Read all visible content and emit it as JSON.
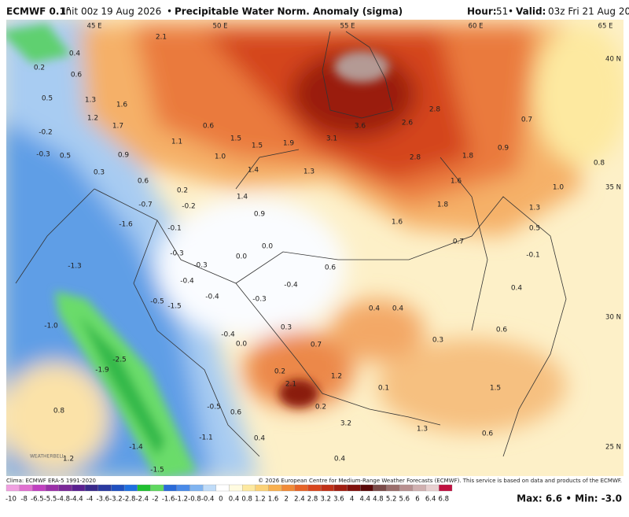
{
  "header": {
    "model": "ECMWF 0.1°",
    "init": "Init 00z 19 Aug 2026",
    "product": "Precipitable Water Norm. Anomaly (sigma)",
    "hour_label": "Hour:",
    "hour": "51",
    "valid_label": "Valid:",
    "valid": "03z Fri 21 Aug 2026"
  },
  "map": {
    "lon_labels": [
      "45 E",
      "50 E",
      "55 E",
      "60 E",
      "65 E"
    ],
    "lat_labels": [
      "40 N",
      "35 N",
      "30 N",
      "25 N"
    ],
    "labels": [
      "2.1",
      "0.4",
      "0.2",
      "0.6",
      "0.5",
      "1.3",
      "1.6",
      "1.2",
      "1.7",
      "-0.2",
      "0.6",
      "1.1",
      "1.5",
      "1.5",
      "1.9",
      "3.1",
      "3.6",
      "2.6",
      "2.8",
      "0.7",
      "-0.3",
      "0.5",
      "0.9",
      "1.0",
      "1.4",
      "1.3",
      "2.8",
      "1.8",
      "0.9",
      "0.8",
      "0.3",
      "0.6",
      "1.6",
      "1.0",
      "0.2",
      "1.4",
      "-0.7",
      "-0.2",
      "0.9",
      "1.8",
      "1.3",
      "-1.6",
      "-0.1",
      "1.6",
      "0.5",
      "0.0",
      "0.7",
      "-0.1",
      "-0.3",
      "-0.3",
      "0.0",
      "0.6",
      "-1.3",
      "-0.4",
      "-0.4",
      "-0.4",
      "-0.3",
      "0.4",
      "-0.5",
      "-1.5",
      "0.4",
      "0.4",
      "-1.0",
      "0.3",
      "0.6",
      "-0.4",
      "0.3",
      "0.0",
      "0.7",
      "-2.5",
      "-1.9",
      "0.2",
      "1.2",
      "2.1",
      "0.1",
      "1.5",
      "0.8",
      "-0.5",
      "0.2",
      "0.6",
      "3.2",
      "1.3",
      "0.6",
      "-1.1",
      "0.4",
      "-1.4",
      "1.2",
      "0.4",
      "-1.5"
    ],
    "logo": "WEATHERBELL"
  },
  "colorbar": {
    "labels": [
      "-10",
      "-8",
      "-6.5",
      "-5.5",
      "-4.8",
      "-4.4",
      "-4",
      "-3.6",
      "-3.2",
      "-2.8",
      "-2.4",
      "-2",
      "-1.6",
      "-1.2",
      "-0.8",
      "-0.4",
      "0",
      "0.4",
      "0.8",
      "1.2",
      "1.6",
      "2",
      "2.4",
      "2.8",
      "3.2",
      "3.6",
      "4",
      "4.4",
      "4.8",
      "5.2",
      "5.6",
      "6",
      "6.4",
      "6.8"
    ],
    "colors": [
      "#f0a0e0",
      "#e070d0",
      "#c040c0",
      "#9a30a8",
      "#7a2898",
      "#5a2090",
      "#3a2a8a",
      "#2a3aa0",
      "#2050c0",
      "#2070e0",
      "#20c030",
      "#60d860",
      "#2a6ad8",
      "#4a8ae8",
      "#80b4f0",
      "#c0dcf8",
      "#ffffff",
      "#fffbe0",
      "#fde9a0",
      "#fbd278",
      "#f8b050",
      "#f08a38",
      "#e66428",
      "#d8461e",
      "#c03018",
      "#a01e12",
      "#80100c",
      "#5a0808",
      "#7a4a48",
      "#9a6e6c",
      "#b89090",
      "#d0b0b0",
      "#e8d0d0",
      "#c01040"
    ]
  },
  "footer": {
    "clima": "Clima: ECMWF ERA-5 1991-2020",
    "copyright": "© 2026 European Centre for Medium-Range Weather Forecasts (ECMWF). This service is based on data and products of the ECMWF.",
    "maxmin": "Max: 6.6 • Min: -3.0"
  }
}
